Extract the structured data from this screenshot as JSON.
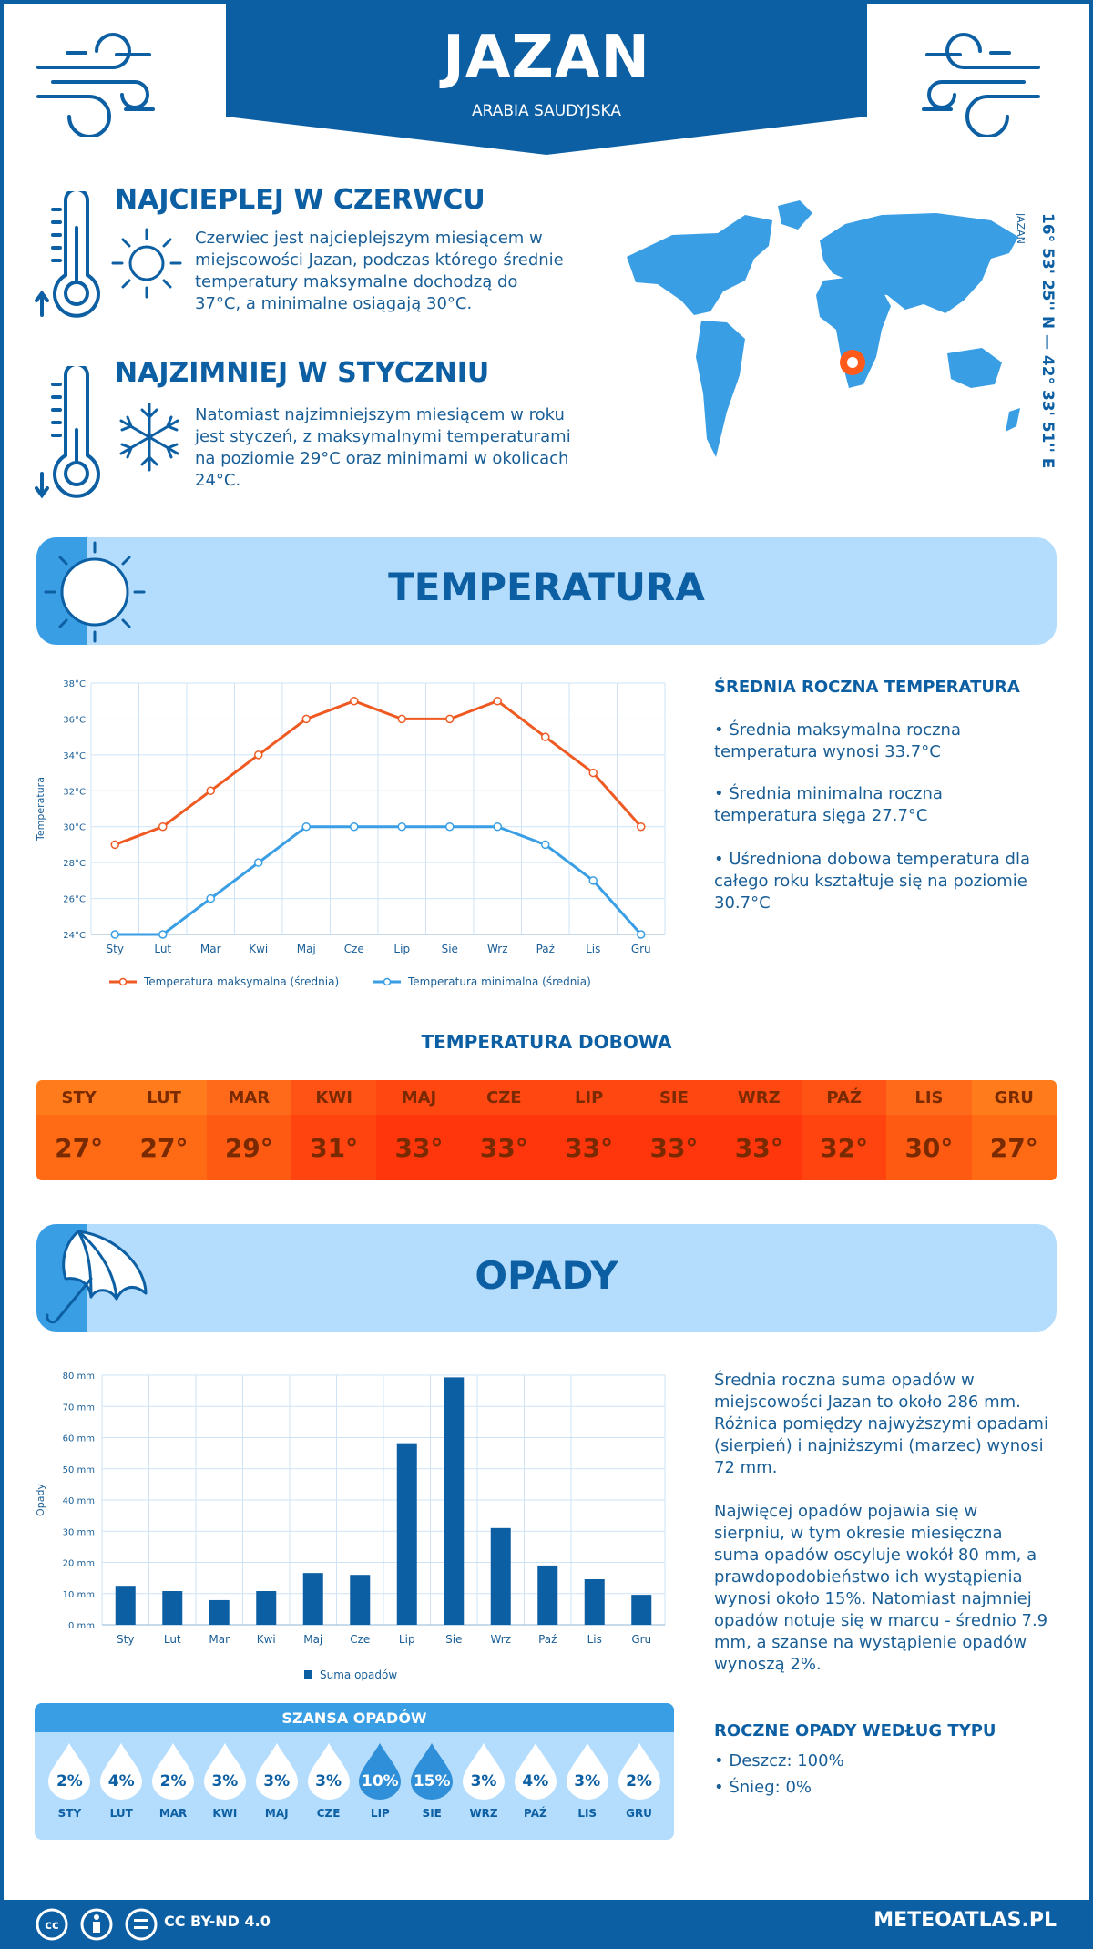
{
  "header": {
    "city": "JAZAN",
    "country": "ARABIA SAUDYJSKA"
  },
  "hottest": {
    "title": "NAJCIEPLEJ W CZERWCU",
    "text": "Czerwiec jest najcieplejszym miesiącem w miejscowości Jazan, podczas którego średnie temperatury maksymalne dochodzą do 37°C, a minimalne osiągają 30°C."
  },
  "coldest": {
    "title": "NAJZIMNIEJ W STYCZNIU",
    "text": "Natomiast najzimniejszym miesiącem w roku jest styczeń, z maksymalnymi temperaturami na poziomie 29°C oraz minimami w okolicach 24°C."
  },
  "coords": {
    "place": "JAZAN",
    "text": "16° 53' 25'' N — 42° 33' 51'' E"
  },
  "temp_section": {
    "title": "TEMPERATURA",
    "side_title": "ŚREDNIA ROCZNA TEMPERATURA",
    "bullets": [
      "• Średnia maksymalna roczna temperatura wynosi 33.7°C",
      "• Średnia minimalna roczna temperatura sięga 27.7°C",
      "• Uśredniona dobowa temperatura dla całego roku kształtuje się na poziomie 30.7°C"
    ],
    "ylabel": "Temperatura",
    "legend_max": "Temperatura maksymalna (średnia)",
    "legend_min": "Temperatura minimalna (średnia)"
  },
  "chart_data": [
    {
      "type": "line",
      "categories": [
        "Sty",
        "Lut",
        "Mar",
        "Kwi",
        "Maj",
        "Cze",
        "Lip",
        "Sie",
        "Wrz",
        "Paź",
        "Lis",
        "Gru"
      ],
      "series": [
        {
          "name": "Temperatura maksymalna (średnia)",
          "color": "#ef5a23",
          "values": [
            29,
            30,
            32,
            34,
            36,
            37,
            36,
            36,
            37,
            35,
            33,
            30
          ]
        },
        {
          "name": "Temperatura minimalna (średnia)",
          "color": "#3a9ee5",
          "values": [
            24,
            24,
            26,
            28,
            30,
            30,
            30,
            30,
            30,
            29,
            27,
            24
          ]
        }
      ],
      "ylabel": "Temperatura",
      "ylim": [
        24,
        38
      ],
      "yticks": [
        "24°C",
        "26°C",
        "28°C",
        "30°C",
        "32°C",
        "34°C",
        "36°C",
        "38°C"
      ],
      "grid": true,
      "legend": "bottom"
    },
    {
      "type": "bar",
      "categories": [
        "Sty",
        "Lut",
        "Mar",
        "Kwi",
        "Maj",
        "Cze",
        "Lip",
        "Sie",
        "Wrz",
        "Paź",
        "Lis",
        "Gru"
      ],
      "series": [
        {
          "name": "Suma opadów",
          "color": "#0d5fa3",
          "values": [
            12.5,
            10.8,
            7.9,
            10.8,
            16.6,
            16,
            58.2,
            79.3,
            31,
            19,
            14.6,
            9.6
          ]
        }
      ],
      "ylabel": "Opady",
      "ylim": [
        0,
        80
      ],
      "yticks": [
        "0 mm",
        "10 mm",
        "20 mm",
        "30 mm",
        "40 mm",
        "50 mm",
        "60 mm",
        "70 mm",
        "80 mm"
      ],
      "grid": true,
      "legend": "bottom"
    }
  ],
  "daily": {
    "title": "TEMPERATURA DOBOWA",
    "months": [
      "STY",
      "LUT",
      "MAR",
      "KWI",
      "MAJ",
      "CZE",
      "LIP",
      "SIE",
      "WRZ",
      "PAŹ",
      "LIS",
      "GRU"
    ],
    "values": [
      "27°",
      "27°",
      "29°",
      "31°",
      "33°",
      "33°",
      "33°",
      "33°",
      "33°",
      "32°",
      "30°",
      "27°"
    ],
    "head_colors": [
      "#ff7b1c",
      "#ff7b1c",
      "#ff6a1a",
      "#ff5315",
      "#ff4712",
      "#ff4712",
      "#ff4712",
      "#ff4712",
      "#ff4712",
      "#ff5315",
      "#ff6a1a",
      "#ff7b1c"
    ],
    "val_colors": [
      "#ff6a14",
      "#ff6a14",
      "#ff5a12",
      "#ff4410",
      "#ff360c",
      "#ff360c",
      "#ff360c",
      "#ff360c",
      "#ff360c",
      "#ff4410",
      "#ff5a12",
      "#ff6a14"
    ]
  },
  "rain_section": {
    "title": "OPADY",
    "ylabel": "Opady",
    "legend": "Suma opadów",
    "p1": "Średnia roczna suma opadów w miejscowości Jazan to około 286 mm. Różnica pomiędzy najwyższymi opadami (sierpień) i najniższymi (marzec) wynosi 72 mm.",
    "p2": "Najwięcej opadów pojawia się w sierpniu, w tym okresie miesięczna suma opadów oscyluje wokół 80 mm, a prawdopodobieństwo ich wystąpienia wynosi około 15%. Natomiast najmniej opadów notuje się w marcu - średnio 7.9 mm, a szanse na wystąpienie opadów wynoszą 2%.",
    "type_title": "ROCZNE OPADY WEDŁUG TYPU",
    "types": [
      "• Deszcz: 100%",
      "• Śnieg: 0%"
    ]
  },
  "chance": {
    "title": "SZANSA OPADÓW",
    "months": [
      "STY",
      "LUT",
      "MAR",
      "KWI",
      "MAJ",
      "CZE",
      "LIP",
      "SIE",
      "WRZ",
      "PAŹ",
      "LIS",
      "GRU"
    ],
    "values": [
      "2%",
      "4%",
      "2%",
      "3%",
      "3%",
      "3%",
      "10%",
      "15%",
      "3%",
      "4%",
      "3%",
      "2%"
    ],
    "highlight": [
      false,
      false,
      false,
      false,
      false,
      false,
      true,
      true,
      false,
      false,
      false,
      false
    ]
  },
  "footer": {
    "license": "CC BY-ND 4.0",
    "site": "METEOATLAS.PL"
  }
}
